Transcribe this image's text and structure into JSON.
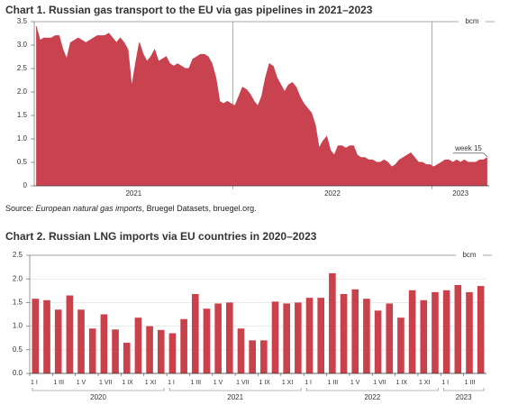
{
  "chart_data": [
    {
      "type": "area",
      "title": "Chart 1. Russian gas transport to the EU via gas pipelines in 2021–2023",
      "unit": "bcm",
      "annotation": "week 15",
      "color": "#c8434f",
      "ylim": [
        0,
        3.5
      ],
      "yticks": [
        0,
        0.5,
        {
          "value": 1,
          "label": "1.0"
        },
        1.5,
        {
          "value": 2,
          "label": "2.0"
        },
        2.5,
        {
          "value": 3,
          "label": "3.0"
        },
        3.5
      ],
      "grid": false,
      "periods": [
        {
          "label": "2021",
          "values": [
            3.4,
            3.1,
            3.15,
            3.15,
            3.15,
            3.2,
            3.2,
            2.9,
            2.7,
            3.05,
            3.1,
            3.15,
            3.1,
            3.05,
            3.1,
            3.15,
            3.2,
            3.2,
            3.2,
            3.25,
            3.15,
            3.05,
            3.15,
            3.05,
            2.9,
            2.1,
            2.6,
            3.05,
            2.8,
            2.65,
            2.75,
            2.9,
            2.65,
            2.7,
            2.75,
            2.6,
            2.55,
            2.6,
            2.55,
            2.5,
            2.5,
            2.7,
            2.75,
            2.8,
            2.8,
            2.75,
            2.6,
            2.3,
            1.8,
            1.75,
            1.8,
            1.75
          ]
        },
        {
          "label": "2022",
          "values": [
            1.7,
            1.9,
            2.1,
            2.05,
            1.95,
            1.8,
            1.7,
            1.9,
            2.3,
            2.6,
            2.55,
            2.3,
            2.15,
            2.0,
            2.15,
            2.2,
            2.1,
            1.9,
            1.75,
            1.65,
            1.55,
            1.3,
            0.8,
            0.95,
            1.05,
            0.75,
            0.65,
            0.85,
            0.85,
            0.8,
            0.85,
            0.85,
            0.65,
            0.6,
            0.6,
            0.55,
            0.55,
            0.5,
            0.5,
            0.55,
            0.5,
            0.4,
            0.45,
            0.55,
            0.6,
            0.65,
            0.7,
            0.6,
            0.5,
            0.5,
            0.45,
            0.45
          ]
        },
        {
          "label": "2023",
          "values": [
            0.4,
            0.45,
            0.5,
            0.55,
            0.55,
            0.5,
            0.55,
            0.5,
            0.55,
            0.5,
            0.5,
            0.5,
            0.55,
            0.55,
            0.6
          ]
        }
      ],
      "source": {
        "prefix": "Source: ",
        "italic": "European natural gas imports",
        "suffix": ", Bruegel Datasets, bruegel.org."
      }
    },
    {
      "type": "bar",
      "title": "Chart 2. Russian LNG imports via EU countries in 2020–2023",
      "unit": "bcm",
      "color": "#c8414b",
      "ylim": [
        0,
        2.5
      ],
      "yticks": [
        {
          "value": 0,
          "label": "0.0"
        },
        0.5,
        {
          "value": 1,
          "label": "1.0"
        },
        1.5,
        {
          "value": 2,
          "label": "2.0"
        },
        2.5
      ],
      "grid": true,
      "periods": [
        {
          "label": "2020",
          "categories": [
            "1 I",
            null,
            "1 III",
            null,
            "1 V",
            null,
            "1 VII",
            null,
            "1 IX",
            null,
            "1 XI",
            null
          ],
          "values": [
            1.58,
            1.55,
            1.35,
            1.65,
            1.35,
            0.95,
            1.25,
            0.93,
            0.65,
            1.18,
            1.0,
            0.92
          ]
        },
        {
          "label": "2021",
          "categories": [
            "1 I",
            null,
            "1 III",
            null,
            "1 V",
            null,
            "1 VII",
            null,
            "1 IX",
            null,
            "1 XI",
            null
          ],
          "values": [
            0.85,
            1.15,
            1.68,
            1.37,
            1.48,
            1.5,
            0.95,
            0.7,
            0.7,
            1.52,
            1.48,
            1.5
          ]
        },
        {
          "label": "2022",
          "categories": [
            "1 I",
            null,
            "1 III",
            null,
            "1 V",
            null,
            "1 VII",
            null,
            "1 IX",
            null,
            "1 XI",
            null
          ],
          "values": [
            1.6,
            1.6,
            2.12,
            1.68,
            1.78,
            1.58,
            1.33,
            1.48,
            1.18,
            1.76,
            1.55,
            1.72
          ]
        },
        {
          "label": "2023",
          "categories": [
            "1 I",
            null,
            "1 III",
            null
          ],
          "values": [
            1.76,
            1.87,
            1.72,
            1.85
          ]
        }
      ]
    }
  ]
}
